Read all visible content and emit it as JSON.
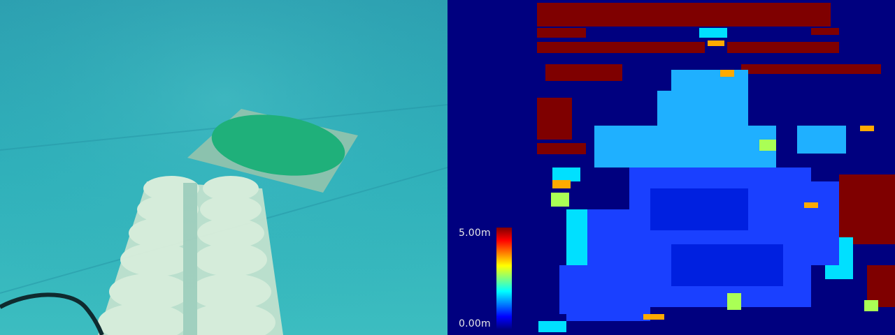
{
  "camera_view": {
    "icon": "underwater-camera-image"
  },
  "depth_view": {
    "icon": "depth-map-image",
    "colormap": "jet"
  },
  "legend": {
    "max_label": "5.00m",
    "min_label": "0.00m",
    "max_value": 5.0,
    "min_value": 0.0,
    "colors": [
      "#7f0000",
      "#ff0000",
      "#ff7f00",
      "#ffff00",
      "#7fff7f",
      "#00ffff",
      "#007fff",
      "#0000ff",
      "#00007f"
    ]
  }
}
